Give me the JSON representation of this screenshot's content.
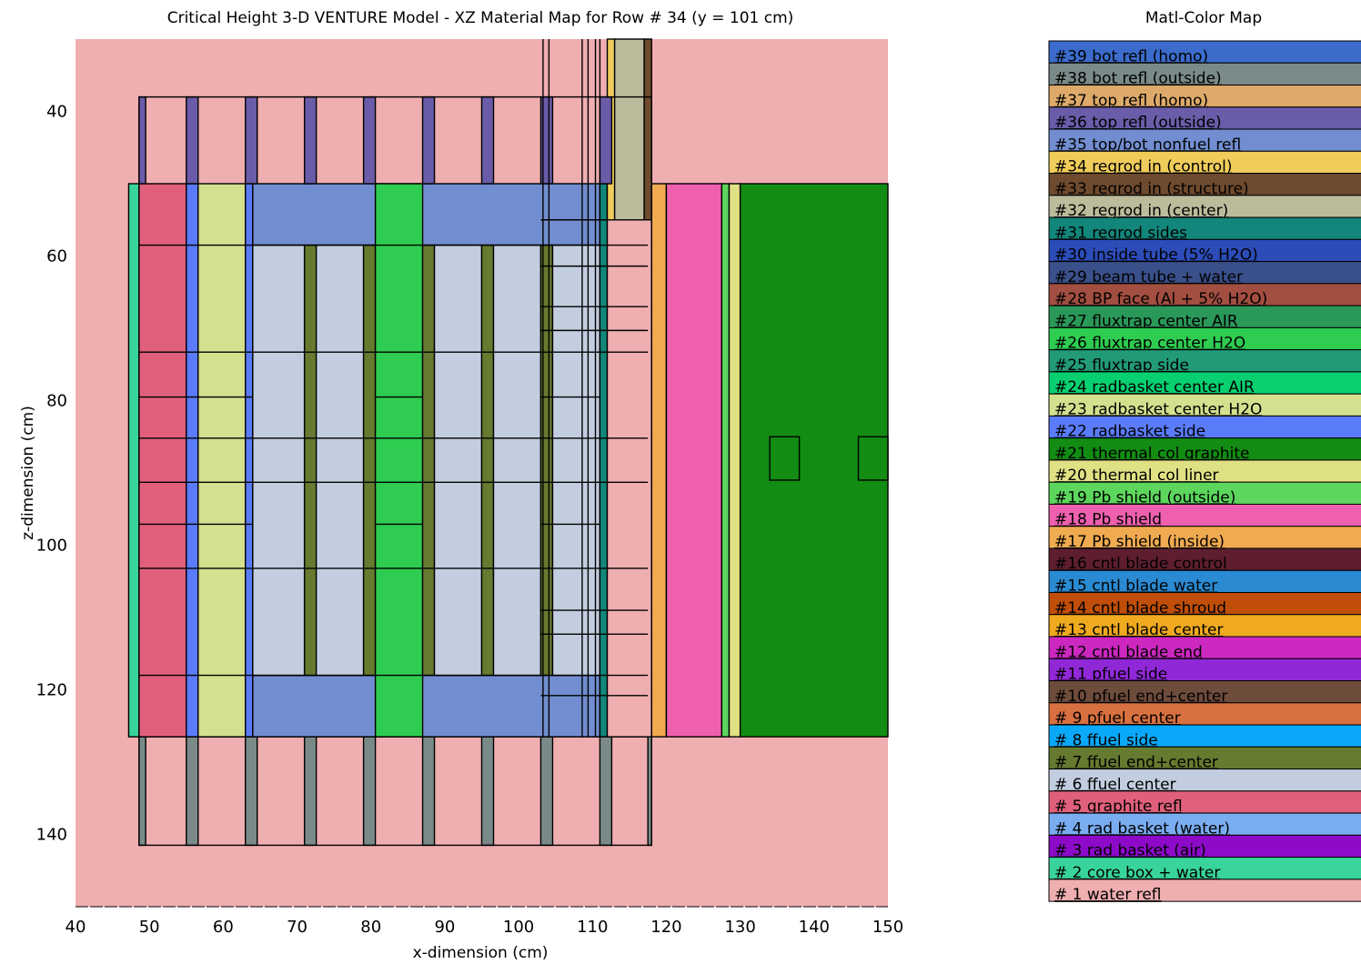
{
  "plot": {
    "title": "Critical Height 3-D VENTURE Model - XZ Material Map for Row # 34 (y = 101 cm)",
    "xlabel": "x-dimension (cm)",
    "ylabel": "z-dimension (cm)"
  },
  "legend": {
    "title": "Matl-Color Map",
    "items": [
      {
        "label": "#39 bot refl (homo)",
        "color": "#3b6ccc"
      },
      {
        "label": "#38 bot refl (outside)",
        "color": "#7a8a88"
      },
      {
        "label": "#37 top refl (homo)",
        "color": "#deaa6a"
      },
      {
        "label": "#36 top refl (outside)",
        "color": "#6a5ca8"
      },
      {
        "label": "#35 top/bot nonfuel refl",
        "color": "#728ed0"
      },
      {
        "label": "#34 regrod in (control)",
        "color": "#f0cc5a"
      },
      {
        "label": "#33 regrod in (structure)",
        "color": "#6e4a2e"
      },
      {
        "label": "#32 regrod in (center)",
        "color": "#bcbc9c"
      },
      {
        "label": "#31 regrod sides",
        "color": "#12867a"
      },
      {
        "label": "#30 inside tube (5% H2O)",
        "color": "#2c4cb8"
      },
      {
        "label": "#29 beam tube + water",
        "color": "#3a508a"
      },
      {
        "label": "#28 BP face (Al + 5% H2O)",
        "color": "#a24e40"
      },
      {
        "label": "#27 fluxtrap center AIR",
        "color": "#2a9858"
      },
      {
        "label": "#26 fluxtrap center H2O",
        "color": "#2ecc50"
      },
      {
        "label": "#25 fluxtrap side",
        "color": "#229a78"
      },
      {
        "label": "#24 radbasket center AIR",
        "color": "#08d070"
      },
      {
        "label": "#23 radbasket center H2O",
        "color": "#d4e08e"
      },
      {
        "label": "#22 radbasket side",
        "color": "#5a7cfa"
      },
      {
        "label": "#21 thermal col graphite",
        "color": "#128c12"
      },
      {
        "label": "#20 thermal col liner",
        "color": "#e0e084"
      },
      {
        "label": "#19 Pb shield (outside)",
        "color": "#5cd65c"
      },
      {
        "label": "#18 Pb shield",
        "color": "#ee60ae"
      },
      {
        "label": "#17 Pb shield (inside)",
        "color": "#f0aa50"
      },
      {
        "label": "#16 cntl blade control",
        "color": "#5e1e30"
      },
      {
        "label": "#15 cntl blade water",
        "color": "#2a8ad2"
      },
      {
        "label": "#14 cntl blade shroud",
        "color": "#c04e08"
      },
      {
        "label": "#13 cntl blade center",
        "color": "#f0aa20"
      },
      {
        "label": "#12 cntl blade end",
        "color": "#cc28c0"
      },
      {
        "label": "#11 pfuel side",
        "color": "#9028d8"
      },
      {
        "label": "#10 pfuel end+center",
        "color": "#6e4c3c"
      },
      {
        "label": "# 9 pfuel center",
        "color": "#d87040"
      },
      {
        "label": "# 8 ffuel side",
        "color": "#0aa8f8"
      },
      {
        "label": "# 7 ffuel end+center",
        "color": "#667a30"
      },
      {
        "label": "# 6 ffuel center",
        "color": "#c2cee0"
      },
      {
        "label": "# 5 graphite refl",
        "color": "#e0607c"
      },
      {
        "label": "# 4 rad basket (water)",
        "color": "#7aacf0"
      },
      {
        "label": "# 3 rad basket (air)",
        "color": "#8c0ac8"
      },
      {
        "label": "# 2 core box + water",
        "color": "#38d49c"
      },
      {
        "label": "# 1 water refl",
        "color": "#efaeb0"
      }
    ]
  },
  "chart_data": {
    "type": "heatmap",
    "title": "Critical Height 3-D VENTURE Model - XZ Material Map for Row # 34 (y = 101 cm)",
    "xlabel": "x-dimension (cm)",
    "ylabel": "z-dimension (cm)",
    "xlim": [
      40,
      150
    ],
    "ylim": [
      150,
      30
    ],
    "x_ticks": [
      40,
      50,
      60,
      70,
      80,
      90,
      100,
      110,
      120,
      130,
      140,
      150
    ],
    "y_ticks": [
      40,
      60,
      80,
      100,
      120,
      140
    ],
    "background_material": 1,
    "regions": [
      {
        "m": 2,
        "x": [
          47.2,
          48.6
        ],
        "z": [
          50.0,
          126.5
        ]
      },
      {
        "m": 5,
        "x": [
          48.6,
          55.0
        ],
        "z": [
          50.0,
          126.5
        ]
      },
      {
        "m": 22,
        "x": [
          55.0,
          56.6
        ],
        "z": [
          50.0,
          126.5
        ]
      },
      {
        "m": 23,
        "x": [
          56.6,
          63.0
        ],
        "z": [
          50.0,
          126.5
        ]
      },
      {
        "m": 22,
        "x": [
          63.0,
          64.0
        ],
        "z": [
          50.0,
          126.5
        ]
      },
      {
        "m": 35,
        "x": [
          64.0,
          111.0
        ],
        "z": [
          50.0,
          58.5
        ]
      },
      {
        "m": 35,
        "x": [
          64.0,
          111.0
        ],
        "z": [
          118.0,
          126.5
        ]
      },
      {
        "m": 6,
        "x": [
          64.0,
          71.0
        ],
        "z": [
          58.5,
          118.0
        ]
      },
      {
        "m": 7,
        "x": [
          71.0,
          72.6
        ],
        "z": [
          58.5,
          118.0
        ]
      },
      {
        "m": 6,
        "x": [
          72.6,
          79.0
        ],
        "z": [
          58.5,
          118.0
        ]
      },
      {
        "m": 7,
        "x": [
          79.0,
          80.6
        ],
        "z": [
          58.5,
          118.0
        ]
      },
      {
        "m": 26,
        "x": [
          80.6,
          87.0
        ],
        "z": [
          50.0,
          126.5
        ]
      },
      {
        "m": 7,
        "x": [
          87.0,
          88.6
        ],
        "z": [
          58.5,
          118.0
        ]
      },
      {
        "m": 6,
        "x": [
          88.6,
          95.0
        ],
        "z": [
          58.5,
          118.0
        ]
      },
      {
        "m": 7,
        "x": [
          95.0,
          96.6
        ],
        "z": [
          58.5,
          118.0
        ]
      },
      {
        "m": 6,
        "x": [
          96.6,
          103.0
        ],
        "z": [
          58.5,
          118.0
        ]
      },
      {
        "m": 7,
        "x": [
          103.0,
          104.6
        ],
        "z": [
          58.5,
          118.0
        ]
      },
      {
        "m": 6,
        "x": [
          104.6,
          111.0
        ],
        "z": [
          58.5,
          118.0
        ]
      },
      {
        "m": 31,
        "x": [
          111.0,
          112.0
        ],
        "z": [
          50.0,
          126.5
        ]
      },
      {
        "m": 1,
        "x": [
          112.0,
          118.0
        ],
        "z": [
          50.0,
          126.5
        ]
      },
      {
        "m": 34,
        "x": [
          112.0,
          113.0
        ],
        "z": [
          30.0,
          55.0
        ]
      },
      {
        "m": 32,
        "x": [
          113.0,
          117.0
        ],
        "z": [
          30.0,
          55.0
        ]
      },
      {
        "m": 33,
        "x": [
          117.0,
          118.0
        ],
        "z": [
          30.0,
          55.0
        ]
      },
      {
        "m": 17,
        "x": [
          118.0,
          120.0
        ],
        "z": [
          50.0,
          126.5
        ]
      },
      {
        "m": 18,
        "x": [
          120.0,
          127.5
        ],
        "z": [
          50.0,
          126.5
        ]
      },
      {
        "m": 19,
        "x": [
          127.5,
          128.5
        ],
        "z": [
          50.0,
          126.5
        ]
      },
      {
        "m": 20,
        "x": [
          128.5,
          130.0
        ],
        "z": [
          50.0,
          126.5
        ]
      },
      {
        "m": 21,
        "x": [
          130.0,
          150.0
        ],
        "z": [
          50.0,
          126.5
        ]
      },
      {
        "m": 36,
        "x": [
          48.6,
          49.5
        ],
        "z": [
          38.0,
          50.0
        ]
      },
      {
        "m": 36,
        "x": [
          55.0,
          56.6
        ],
        "z": [
          38.0,
          50.0
        ]
      },
      {
        "m": 36,
        "x": [
          63.0,
          64.6
        ],
        "z": [
          38.0,
          50.0
        ]
      },
      {
        "m": 36,
        "x": [
          71.0,
          72.6
        ],
        "z": [
          38.0,
          50.0
        ]
      },
      {
        "m": 36,
        "x": [
          79.0,
          80.6
        ],
        "z": [
          38.0,
          50.0
        ]
      },
      {
        "m": 36,
        "x": [
          87.0,
          88.6
        ],
        "z": [
          38.0,
          50.0
        ]
      },
      {
        "m": 36,
        "x": [
          95.0,
          96.6
        ],
        "z": [
          38.0,
          50.0
        ]
      },
      {
        "m": 36,
        "x": [
          103.0,
          104.6
        ],
        "z": [
          38.0,
          50.0
        ]
      },
      {
        "m": 36,
        "x": [
          111.0,
          112.6
        ],
        "z": [
          38.0,
          50.0
        ]
      },
      {
        "m": 38,
        "x": [
          48.6,
          49.5
        ],
        "z": [
          126.5,
          141.5
        ]
      },
      {
        "m": 38,
        "x": [
          55.0,
          56.6
        ],
        "z": [
          126.5,
          141.5
        ]
      },
      {
        "m": 38,
        "x": [
          63.0,
          64.6
        ],
        "z": [
          126.5,
          141.5
        ]
      },
      {
        "m": 38,
        "x": [
          71.0,
          72.6
        ],
        "z": [
          126.5,
          141.5
        ]
      },
      {
        "m": 38,
        "x": [
          79.0,
          80.6
        ],
        "z": [
          126.5,
          141.5
        ]
      },
      {
        "m": 38,
        "x": [
          87.0,
          88.6
        ],
        "z": [
          126.5,
          141.5
        ]
      },
      {
        "m": 38,
        "x": [
          95.0,
          96.6
        ],
        "z": [
          126.5,
          141.5
        ]
      },
      {
        "m": 38,
        "x": [
          103.0,
          104.6
        ],
        "z": [
          126.5,
          141.5
        ]
      },
      {
        "m": 38,
        "x": [
          111.0,
          112.6
        ],
        "z": [
          126.5,
          141.5
        ]
      },
      {
        "m": 38,
        "x": [
          117.5,
          118.0
        ],
        "z": [
          126.5,
          141.5
        ]
      }
    ],
    "outline_rects": [
      {
        "x": [
          48.6,
          118.0
        ],
        "z": [
          38.0,
          141.5
        ]
      },
      {
        "x": [
          134.0,
          138.0
        ],
        "z": [
          85.0,
          91.0
        ]
      },
      {
        "x": [
          146.0,
          150.0
        ],
        "z": [
          85.0,
          91.0
        ]
      }
    ],
    "vlines": [
      {
        "x": 103.3,
        "z": [
          30.0,
          126.5
        ]
      },
      {
        "x": 104.1,
        "z": [
          30.0,
          126.5
        ]
      },
      {
        "x": 108.6,
        "z": [
          30.0,
          126.5
        ]
      },
      {
        "x": 109.4,
        "z": [
          30.0,
          126.5
        ]
      },
      {
        "x": 110.4,
        "z": [
          30.0,
          126.5
        ]
      },
      {
        "x": 111.0,
        "z": [
          30.0,
          50.0
        ]
      }
    ],
    "hlines": [
      {
        "z": 58.5,
        "x": [
          48.6,
          117.5
        ]
      },
      {
        "z": 73.3,
        "x": [
          48.6,
          117.5
        ]
      },
      {
        "z": 79.5,
        "x": [
          48.6,
          64.0
        ]
      },
      {
        "z": 79.5,
        "x": [
          80.6,
          87.0
        ]
      },
      {
        "z": 79.5,
        "x": [
          103.0,
          111.0
        ]
      },
      {
        "z": 85.2,
        "x": [
          48.6,
          117.5
        ]
      },
      {
        "z": 91.3,
        "x": [
          48.6,
          117.5
        ]
      },
      {
        "z": 97.1,
        "x": [
          48.6,
          64.0
        ]
      },
      {
        "z": 97.1,
        "x": [
          80.6,
          87.0
        ]
      },
      {
        "z": 97.1,
        "x": [
          103.0,
          111.0
        ]
      },
      {
        "z": 103.2,
        "x": [
          48.6,
          117.5
        ]
      },
      {
        "z": 112.3,
        "x": [
          103.0,
          117.5
        ]
      },
      {
        "z": 118.0,
        "x": [
          48.6,
          117.5
        ]
      },
      {
        "z": 120.8,
        "x": [
          103.0,
          117.5
        ]
      },
      {
        "z": 55.0,
        "x": [
          103.0,
          112.0
        ]
      },
      {
        "z": 61.4,
        "x": [
          103.0,
          117.5
        ]
      },
      {
        "z": 67.0,
        "x": [
          103.0,
          117.5
        ]
      },
      {
        "z": 70.3,
        "x": [
          103.0,
          117.5
        ]
      },
      {
        "z": 109.0,
        "x": [
          103.0,
          117.5
        ]
      },
      {
        "z": 126.5,
        "x": [
          48.6,
          117.5
        ]
      }
    ]
  }
}
